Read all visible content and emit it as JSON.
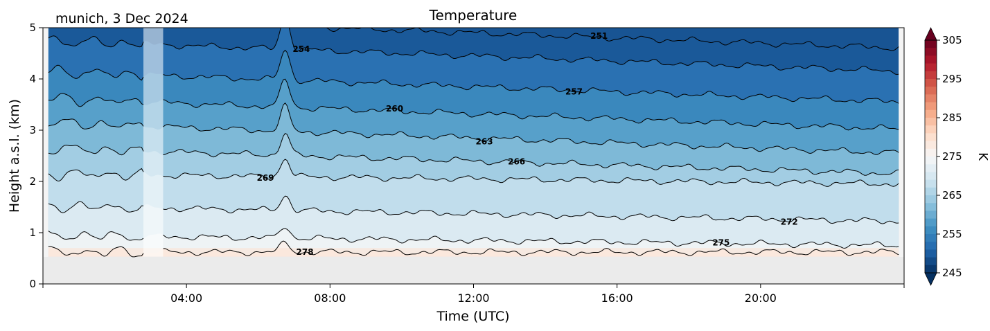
{
  "chart_data": {
    "type": "heatmap",
    "subtype": "filled-contour time-height cross-section with labeled contour lines",
    "title": "Temperature",
    "location_date": "munich, 3 Dec 2024",
    "xlabel": "Time (UTC)",
    "ylabel": "Height a.s.l. (km)",
    "x_ticks": [
      "04:00",
      "08:00",
      "12:00",
      "16:00",
      "20:00"
    ],
    "x_tick_hours": [
      4,
      8,
      12,
      16,
      20
    ],
    "xlim_hours": [
      0,
      24
    ],
    "y_ticks": [
      "0",
      "1",
      "2",
      "3",
      "4",
      "5"
    ],
    "ylim_km": [
      0,
      5
    ],
    "colorbar": {
      "label": "K",
      "ticks": [
        "305",
        "295",
        "285",
        "275",
        "265",
        "255",
        "245"
      ],
      "tick_values": [
        305,
        295,
        285,
        275,
        265,
        255,
        245
      ],
      "range": [
        245,
        305
      ],
      "colormap": "RdBu_r",
      "extend": "both"
    },
    "ground_level_km": 0.53,
    "data_gap_hours": [
      2.8,
      3.35
    ],
    "contour_levels": [
      {
        "value": 278,
        "label": "278",
        "label_hour": 7.3,
        "base_height_km": 0.62,
        "slope_km_per_day": 0.0
      },
      {
        "value": 275,
        "label": "275",
        "label_hour": 18.9,
        "base_height_km": 0.95,
        "slope_km_per_day": -0.2
      },
      {
        "value": 272,
        "label": "272",
        "label_hour": 20.8,
        "base_height_km": 1.52,
        "slope_km_per_day": -0.3
      },
      {
        "value": 269,
        "label": "269",
        "label_hour": 6.2,
        "base_height_km": 2.15,
        "slope_km_per_day": -0.2
      },
      {
        "value": 266,
        "label": "266",
        "label_hour": 13.2,
        "base_height_km": 2.65,
        "slope_km_per_day": -0.5
      },
      {
        "value": 263,
        "label": "263",
        "label_hour": 12.3,
        "base_height_km": 3.15,
        "slope_km_per_day": -0.6
      },
      {
        "value": 260,
        "label": "260",
        "label_hour": 9.8,
        "base_height_km": 3.62,
        "slope_km_per_day": -0.6
      },
      {
        "value": 257,
        "label": "257",
        "label_hour": 14.8,
        "base_height_km": 4.15,
        "slope_km_per_day": -0.6
      },
      {
        "value": 254,
        "label": "254",
        "label_hour": 7.2,
        "base_height_km": 4.75,
        "slope_km_per_day": -0.6
      },
      {
        "value": 251,
        "label": "251",
        "label_hour": 15.5,
        "base_height_km": 5.2,
        "slope_km_per_day": -0.6
      }
    ],
    "grid": false,
    "legend": "none"
  }
}
